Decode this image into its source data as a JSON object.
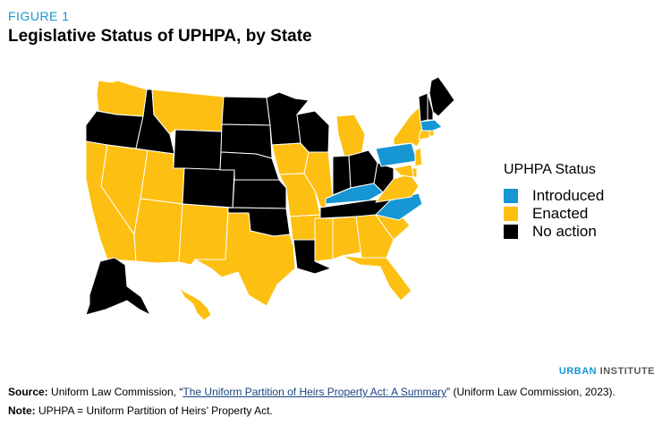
{
  "figure_label": "FIGURE 1",
  "title": "Legislative Status of UPHPA, by State",
  "legend": {
    "title": "UPHPA Status",
    "items": [
      {
        "label": "Introduced",
        "color": "#1696d2"
      },
      {
        "label": "Enacted",
        "color": "#fdbf11"
      },
      {
        "label": "No action",
        "color": "#000000"
      }
    ]
  },
  "states": {
    "WA": "enacted",
    "OR": "no_action",
    "CA": "enacted",
    "NV": "enacted",
    "ID": "no_action",
    "MT": "enacted",
    "WY": "no_action",
    "UT": "enacted",
    "AZ": "enacted",
    "CO": "no_action",
    "NM": "enacted",
    "ND": "no_action",
    "SD": "no_action",
    "NE": "no_action",
    "KS": "no_action",
    "OK": "no_action",
    "TX": "enacted",
    "MN": "no_action",
    "IA": "enacted",
    "MO": "enacted",
    "AR": "enacted",
    "LA": "no_action",
    "WI": "no_action",
    "IL": "enacted",
    "MI": "enacted",
    "IN": "no_action",
    "OH": "no_action",
    "KY": "introduced",
    "TN": "no_action",
    "MS": "enacted",
    "AL": "enacted",
    "GA": "enacted",
    "FL": "enacted",
    "SC": "enacted",
    "NC": "introduced",
    "VA": "enacted",
    "WV": "no_action",
    "PA": "introduced",
    "NY": "enacted",
    "ME": "no_action",
    "NH": "no_action",
    "VT": "no_action",
    "MA": "introduced",
    "CT": "enacted",
    "NJ": "enacted",
    "DE": "enacted",
    "MD": "enacted",
    "RI": "enacted",
    "AK": "no_action",
    "HI": "enacted"
  },
  "brand": {
    "part1": "URBAN",
    "part2": " INSTITUTE"
  },
  "source": {
    "label": "Source:",
    "text_before": " Uniform Law Commission, “",
    "link_text": "The Uniform Partition of Heirs Property Act: A Summary",
    "text_after": "” (Uniform Law Commission, 2023)."
  },
  "note": {
    "label": "Note:",
    "text": " UPHPA = Uniform Partition of Heirs’ Property Act."
  }
}
